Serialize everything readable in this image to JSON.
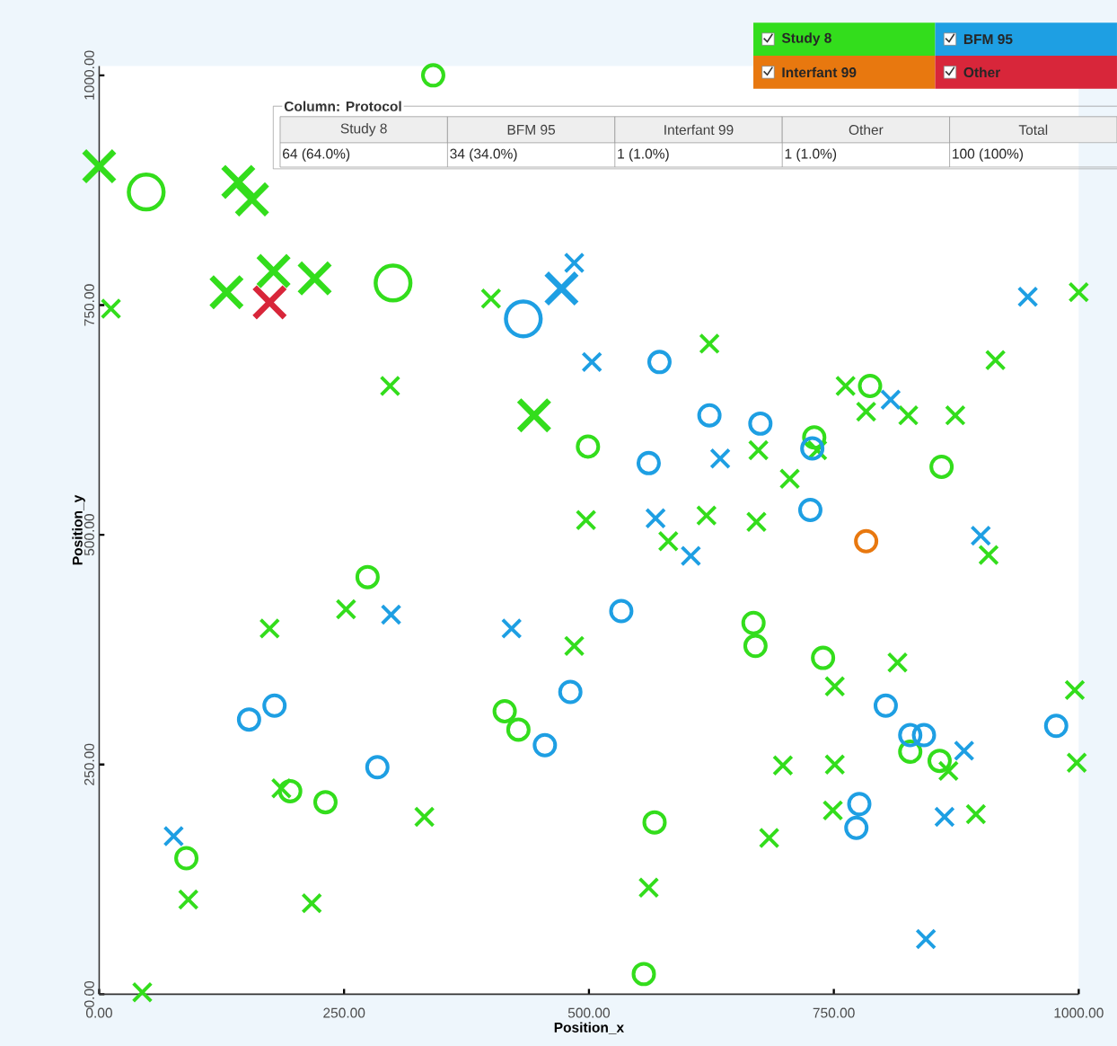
{
  "chart_data": {
    "type": "bubble",
    "xlabel": "Position_x",
    "ylabel": "Position_y",
    "xlim": [
      0,
      1000
    ],
    "ylim": [
      0,
      1010
    ],
    "xticks": [
      {
        "value": 0,
        "label": "0.00"
      },
      {
        "value": 250,
        "label": "250.00"
      },
      {
        "value": 500,
        "label": "500.00"
      },
      {
        "value": 750,
        "label": "750.00"
      },
      {
        "value": 1000,
        "label": "1000.00"
      }
    ],
    "yticks": [
      {
        "value": 0,
        "label": "0.00"
      },
      {
        "value": 250,
        "label": "250.00"
      },
      {
        "value": 500,
        "label": "500.00"
      },
      {
        "value": 750,
        "label": "750.00"
      },
      {
        "value": 1000,
        "label": "1000.00"
      }
    ],
    "legend": "top right",
    "annotations": [
      "Column: Protocol",
      "Study 8",
      "BFM 95",
      "Interfant 99",
      "Other",
      "Total",
      "64 (64.0%)",
      "34 (34.0%)",
      "1 (1.0%)",
      "1 (1.0%)",
      "100 (100%)"
    ],
    "series": [
      {
        "name": "Study 8",
        "color": "#33dd1c",
        "marker": "cross",
        "x": [
          0,
          142,
          156,
          178,
          220,
          130,
          444,
          12,
          400,
          1000,
          623,
          915,
          762,
          783,
          826,
          874,
          733,
          673,
          705,
          497,
          620,
          671,
          581,
          908,
          297,
          252,
          174,
          485,
          815,
          751,
          996,
          998,
          867,
          698,
          751,
          749,
          895,
          684,
          561,
          186,
          332,
          91,
          217,
          44
        ],
        "values": [
          901,
          884,
          865,
          787,
          779,
          764,
          630,
          746,
          757,
          764,
          708,
          690,
          662,
          634,
          630,
          630,
          592,
          592,
          561,
          516,
          521,
          514,
          493,
          478,
          662,
          419,
          398,
          379,
          361,
          335,
          331,
          252,
          243,
          249,
          250,
          200,
          196,
          170,
          116,
          224,
          193,
          103,
          99,
          2
        ],
        "sizes": [
          0.49,
          0.49,
          0.49,
          0.49,
          0.49,
          0.49,
          0.49,
          0.17,
          0.17,
          0.17,
          0.17,
          0.17,
          0.17,
          0.17,
          0.17,
          0.17,
          0.17,
          0.17,
          0.17,
          0.17,
          0.17,
          0.17,
          0.17,
          0.17,
          0.17,
          0.17,
          0.17,
          0.17,
          0.17,
          0.17,
          0.17,
          0.17,
          0.17,
          0.17,
          0.17,
          0.17,
          0.17,
          0.17,
          0.17,
          0.17,
          0.17,
          0.17,
          0.17,
          0.17
        ]
      },
      {
        "color": "#33dd1c",
        "marker": "circle",
        "x": [
          48,
          300,
          341,
          787,
          499,
          730,
          860,
          274,
          414,
          428,
          195,
          231,
          89,
          668,
          670,
          739,
          828,
          858,
          567,
          556
        ],
        "values": [
          873,
          774,
          1000,
          662,
          596,
          606,
          574,
          454,
          308,
          288,
          221,
          209,
          148,
          404,
          379,
          366,
          264,
          254,
          187,
          22
        ],
        "sizes": [
          1,
          1,
          0.35,
          0.35,
          0.35,
          0.35,
          0.35,
          0.35,
          0.35,
          0.35,
          0.35,
          0.35,
          0.35,
          0.35,
          0.35,
          0.35,
          0.35,
          0.35,
          0.35,
          0.35
        ]
      },
      {
        "name": "BFM 95",
        "color": "#1e9fe3",
        "marker": "cross",
        "x": [
          472,
          485,
          948,
          503,
          808,
          634,
          568,
          604,
          900,
          298,
          421,
          883,
          863,
          76,
          844
        ],
        "values": [
          768,
          796,
          759,
          688,
          647,
          583,
          518,
          477,
          499,
          413,
          398,
          265,
          193,
          172,
          60
        ],
        "sizes": [
          0.49,
          0.17,
          0.17,
          0.17,
          0.17,
          0.17,
          0.17,
          0.17,
          0.17,
          0.17,
          0.17,
          0.17,
          0.17,
          0.17,
          0.17
        ]
      },
      {
        "color": "#1e9fe3",
        "marker": "circle",
        "x": [
          433,
          572,
          623,
          675,
          728,
          561,
          726,
          533,
          481,
          153,
          179,
          455,
          284,
          803,
          977,
          828,
          842,
          776,
          773
        ],
        "values": [
          735,
          688,
          630,
          621,
          594,
          578,
          527,
          417,
          329,
          299,
          314,
          271,
          247,
          314,
          292,
          282,
          282,
          207,
          181
        ],
        "sizes": [
          1,
          0.35,
          0.35,
          0.35,
          0.35,
          0.35,
          0.35,
          0.35,
          0.35,
          0.35,
          0.35,
          0.35,
          0.35,
          0.35,
          0.35,
          0.35,
          0.35,
          0.35,
          0.35
        ]
      },
      {
        "name": "Interfant 99",
        "color": "#e8780f",
        "marker": "circle",
        "x": [
          783
        ],
        "values": [
          493
        ],
        "sizes": [
          0.35
        ]
      },
      {
        "name": "Other",
        "color": "#d8263a",
        "marker": "cross",
        "x": [
          174
        ],
        "values": [
          753
        ],
        "sizes": [
          0.49
        ]
      }
    ]
  }
}
